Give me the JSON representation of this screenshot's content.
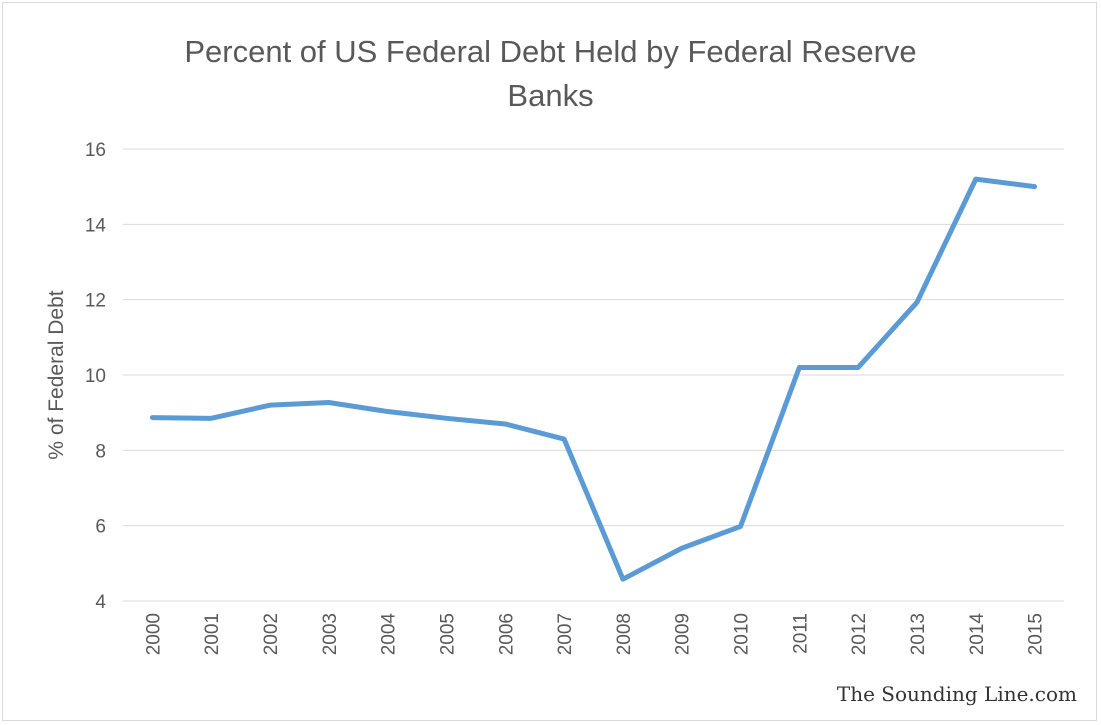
{
  "chart_data": {
    "type": "line",
    "title": "Percent of US Federal Debt Held by Federal Reserve Banks",
    "title_lines": [
      "Percent of US Federal Debt Held by Federal Reserve",
      "Banks"
    ],
    "xlabel": "",
    "ylabel": "% of Federal Debt",
    "categories": [
      "2000",
      "2001",
      "2002",
      "2003",
      "2004",
      "2005",
      "2006",
      "2007",
      "2008",
      "2009",
      "2010",
      "2011",
      "2012",
      "2013",
      "2014",
      "2015"
    ],
    "series": [
      {
        "values": [
          8.87,
          8.85,
          9.2,
          9.27,
          9.03,
          8.85,
          8.7,
          8.3,
          4.58,
          5.4,
          5.98,
          10.2,
          10.2,
          11.93,
          15.2,
          15.0
        ],
        "color": "#5b9bd5"
      }
    ],
    "ylim": [
      4,
      16
    ],
    "yticks": [
      4,
      6,
      8,
      10,
      12,
      14,
      16
    ],
    "grid": true,
    "legend": "none"
  },
  "watermark": "The Sounding Line.com"
}
